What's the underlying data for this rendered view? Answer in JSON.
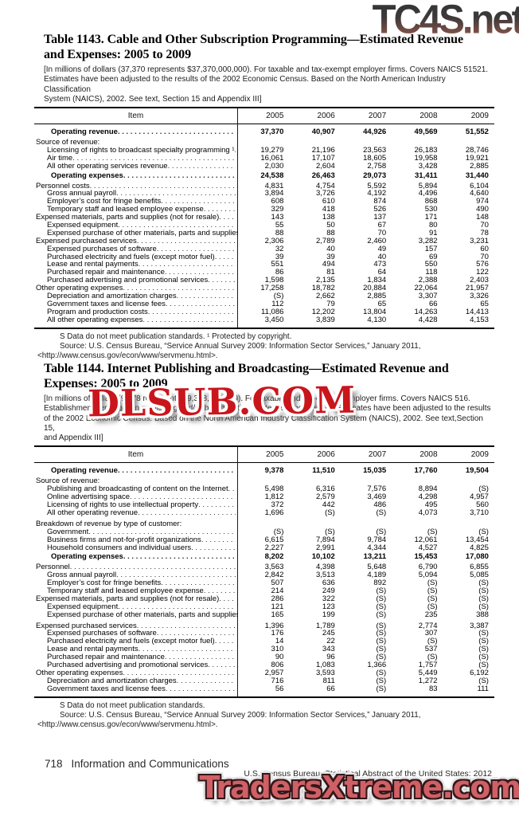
{
  "watermarks": {
    "top": "TC4S.net",
    "middle": "DLSUB.COM",
    "bottom": "TradersXtreme.com"
  },
  "colors": {
    "dlsub_red": "#c9151c",
    "traders_fill": "#cf6065",
    "traders_outline": "#33171a",
    "tc4s_gradient_top": "#232325",
    "tc4s_gradient_bottom": "#a06a5c"
  },
  "page_footer": {
    "page_number": "718",
    "section": "Information and Communications",
    "right": "U.S. Census Bureau, Statistical Abstract of the United States: 2012"
  },
  "tables": [
    {
      "title_lines": [
        "Table 1143. Cable and Other Subscription Programming—Estimated Revenue",
        "and Expenses: 2005 to 2009"
      ],
      "note_lines": [
        "[In millions of dollars (37,370 represents $37,370,000,000). For taxable and tax-exempt employer firms. Covers NAICS 51521.",
        "Estimates have been adjusted to the  results of the 2002 Economic Census. Based on the North American Industry Classification",
        "System (NAICS), 2002. See text, Section 15 and Appendix III]"
      ],
      "columns": [
        "Item",
        "2005",
        "2006",
        "2007",
        "2008",
        "2009"
      ],
      "rows": [
        {
          "label": "Operating revenue",
          "cls": "total",
          "values": [
            "37,370",
            "40,907",
            "44,926",
            "49,569",
            "51,552"
          ]
        },
        {
          "label": "Source of revenue:",
          "cls": "group",
          "values": []
        },
        {
          "label": "Licensing of rights to broadcast specialty programming ¹",
          "cls": "l1",
          "values": [
            "19,279",
            "21,196",
            "23,563",
            "26,183",
            "28,746"
          ]
        },
        {
          "label": "Air time",
          "cls": "l1",
          "values": [
            "16,061",
            "17,107",
            "18,605",
            "19,958",
            "19,921"
          ]
        },
        {
          "label": "All other operating services revenue",
          "cls": "l1",
          "values": [
            "2,030",
            "2,604",
            "2,758",
            "3,428",
            "2,885"
          ]
        },
        {
          "label": "Operating expenses",
          "cls": "total",
          "values": [
            "24,538",
            "26,463",
            "29,073",
            "31,411",
            "31,440"
          ]
        },
        {
          "label": "Personnel costs",
          "cls": "l0",
          "values": [
            "4,831",
            "4,754",
            "5,592",
            "5,894",
            "6,104"
          ]
        },
        {
          "label": "Gross annual payroll",
          "cls": "l1",
          "values": [
            "3,894",
            "3,726",
            "4,192",
            "4,496",
            "4,640"
          ]
        },
        {
          "label": "Employer’s cost for fringe benefits",
          "cls": "l1",
          "values": [
            "608",
            "610",
            "874",
            "868",
            "974"
          ]
        },
        {
          "label": "Temporary staff and leased employee expense",
          "cls": "l1",
          "values": [
            "329",
            "418",
            "526",
            "530",
            "490"
          ]
        },
        {
          "label": "Expensed materials, parts and supplies (not for resale)",
          "cls": "l0",
          "values": [
            "143",
            "138",
            "137",
            "171",
            "148"
          ]
        },
        {
          "label": "Expensed equipment",
          "cls": "l1",
          "values": [
            "55",
            "50",
            "67",
            "80",
            "70"
          ]
        },
        {
          "label": "Expensed purchase of other materials, parts and supplies",
          "cls": "l1",
          "values": [
            "88",
            "88",
            "70",
            "91",
            "78"
          ]
        },
        {
          "label": "Expensed purchased services",
          "cls": "l0",
          "values": [
            "2,306",
            "2,789",
            "2,460",
            "3,282",
            "3,231"
          ]
        },
        {
          "label": "Expensed purchases of software",
          "cls": "l1",
          "values": [
            "32",
            "40",
            "49",
            "157",
            "60"
          ]
        },
        {
          "label": "Purchased electricity and fuels (except motor fuel)",
          "cls": "l1",
          "values": [
            "39",
            "39",
            "40",
            "69",
            "70"
          ]
        },
        {
          "label": "Lease and rental payments",
          "cls": "l1",
          "values": [
            "551",
            "494",
            "473",
            "550",
            "576"
          ]
        },
        {
          "label": "Purchased repair and maintenance",
          "cls": "l1",
          "values": [
            "86",
            "81",
            "64",
            "118",
            "122"
          ]
        },
        {
          "label": "Purchased advertising and promotional services",
          "cls": "l1",
          "values": [
            "1,598",
            "2,135",
            "1,834",
            "2,388",
            "2,403"
          ]
        },
        {
          "label": "Other operating expenses",
          "cls": "l0",
          "values": [
            "17,258",
            "18,782",
            "20,884",
            "22,064",
            "21,957"
          ]
        },
        {
          "label": "Depreciation and amortization charges",
          "cls": "l1",
          "values": [
            "(S)",
            "2,662",
            "2,885",
            "3,307",
            "3,326"
          ]
        },
        {
          "label": "Government taxes and license fees",
          "cls": "l1",
          "values": [
            "112",
            "79",
            "65",
            "66",
            "65"
          ]
        },
        {
          "label": "Program and production costs",
          "cls": "l1",
          "values": [
            "11,086",
            "12,202",
            "13,804",
            "14,263",
            "14,413"
          ]
        },
        {
          "label": "All other operating expenses",
          "cls": "l1",
          "values": [
            "3,450",
            "3,839",
            "4,130",
            "4,428",
            "4,153"
          ]
        }
      ],
      "footnotes": [
        "S Data do not meet publication standards. ¹ Protected by copyright.",
        "Source: U.S. Census Bureau, “Service Annual Survey 2009: Information Sector Services,” January 2011,",
        "<http://www.census.gov/econ/www/servmenu.html>."
      ]
    },
    {
      "title_lines": [
        "Table 1144. Internet Publishing and Broadcasting—Estimated Revenue and",
        "Expenses: 2005 to 2009"
      ],
      "note_lines": [
        "[In millions of dollars (9,378 represents $9,378,000,000). For taxable and tax-exempt employer firms. Covers NAICS 516.",
        "Establishments engaged in publishing and/or broadcasting content on the Internet. Estimates have been adjusted to the results",
        "of the 2002 Economic Census. Based on the North American Industry Classification System (NAICS), 2002. See text,Section 15,",
        "and Appendix III]"
      ],
      "columns": [
        "Item",
        "2005",
        "2006",
        "2007",
        "2008",
        "2009"
      ],
      "rows": [
        {
          "label": "Operating revenue",
          "cls": "total",
          "values": [
            "9,378",
            "11,510",
            "15,035",
            "17,760",
            "19,504"
          ]
        },
        {
          "label": "Source of revenue:",
          "cls": "group",
          "values": []
        },
        {
          "label": "Publishing and broadcasting of content on the Internet",
          "cls": "l1",
          "values": [
            "5,498",
            "6,316",
            "7,576",
            "8,894",
            "(S)"
          ]
        },
        {
          "label": "Online advertising space",
          "cls": "l1",
          "values": [
            "1,812",
            "2,579",
            "3,469",
            "4,298",
            "4,957"
          ]
        },
        {
          "label": "Licensing of rights to use intellectual property",
          "cls": "l1",
          "values": [
            "372",
            "442",
            "486",
            "495",
            "560"
          ]
        },
        {
          "label": "All other operating revenue",
          "cls": "l1",
          "values": [
            "1,696",
            "(S)",
            "(S)",
            "4,073",
            "3,710"
          ]
        },
        {
          "label": "Breakdown of revenue by type of customer:",
          "cls": "group",
          "sp": true,
          "values": []
        },
        {
          "label": "Government",
          "cls": "l1",
          "values": [
            "(S)",
            "(S)",
            "(S)",
            "(S)",
            "(S)"
          ]
        },
        {
          "label": "Business firms and not-for-profit organizations",
          "cls": "l1",
          "values": [
            "6,615",
            "7,894",
            "9,784",
            "12,061",
            "13,454"
          ]
        },
        {
          "label": "Household consumers and individual users",
          "cls": "l1",
          "values": [
            "2,227",
            "2,991",
            "4,344",
            "4,527",
            "4,825"
          ]
        },
        {
          "label": "Operating expenses",
          "cls": "total",
          "values": [
            "8,202",
            "10,102",
            "13,211",
            "15,453",
            "17,080"
          ]
        },
        {
          "label": "Personnel",
          "cls": "l0",
          "values": [
            "3,563",
            "4,398",
            "5,648",
            "6,790",
            "6,855"
          ]
        },
        {
          "label": "Gross annual payroll",
          "cls": "l1",
          "values": [
            "2,842",
            "3,513",
            "4,189",
            "5,094",
            "5,085"
          ]
        },
        {
          "label": "Employer’s cost for fringe benefits",
          "cls": "l1",
          "values": [
            "507",
            "636",
            "892",
            "(S)",
            "(S)"
          ]
        },
        {
          "label": "Temporary staff and leased employee expense",
          "cls": "l1",
          "values": [
            "214",
            "249",
            "(S)",
            "(S)",
            "(S)"
          ]
        },
        {
          "label": "Expensed materials, parts and supplies (not for resale)",
          "cls": "l0",
          "values": [
            "286",
            "322",
            "(S)",
            "(S)",
            "(S)"
          ]
        },
        {
          "label": "Expensed equipment",
          "cls": "l1",
          "values": [
            "121",
            "123",
            "(S)",
            "(S)",
            "(S)"
          ]
        },
        {
          "label": "Expensed purchase of other materials, parts and supplies",
          "cls": "l1",
          "values": [
            "165",
            "199",
            "(S)",
            "235",
            "388"
          ]
        },
        {
          "label": "Expensed purchased services",
          "cls": "l0",
          "sp": true,
          "values": [
            "1,396",
            "1,789",
            "(S)",
            "2,774",
            "3,387"
          ]
        },
        {
          "label": "Expensed purchases of software",
          "cls": "l1",
          "values": [
            "176",
            "245",
            "(S)",
            "307",
            "(S)"
          ]
        },
        {
          "label": "Purchased electricity and fuels (except motor fuel)",
          "cls": "l1",
          "values": [
            "14",
            "22",
            "(S)",
            "(S)",
            "(S)"
          ]
        },
        {
          "label": "Lease and rental payments",
          "cls": "l1",
          "values": [
            "310",
            "343",
            "(S)",
            "537",
            "(S)"
          ]
        },
        {
          "label": "Purchased repair and maintenance",
          "cls": "l1",
          "values": [
            "90",
            "96",
            "(S)",
            "(S)",
            "(S)"
          ]
        },
        {
          "label": "Purchased advertising and promotional services",
          "cls": "l1",
          "values": [
            "806",
            "1,083",
            "1,366",
            "1,757",
            "(S)"
          ]
        },
        {
          "label": "Other operating expenses",
          "cls": "l0",
          "values": [
            "2,957",
            "3,593",
            "(S)",
            "5,449",
            "6,192"
          ]
        },
        {
          "label": "Depreciation and amortization charges",
          "cls": "l1",
          "values": [
            "716",
            "811",
            "(S)",
            "1,272",
            "(S)"
          ]
        },
        {
          "label": "Government taxes and license fees",
          "cls": "l1",
          "values": [
            "56",
            "66",
            "(S)",
            "83",
            "111"
          ]
        }
      ],
      "footnotes": [
        "S Data do not meet publication standards.",
        "Source: U.S. Census Bureau, “Service Annual Survey 2009: Information Sector Services,” January 2011,",
        "<http://www.census.gov/econ/www/servmenu.html>."
      ]
    }
  ]
}
